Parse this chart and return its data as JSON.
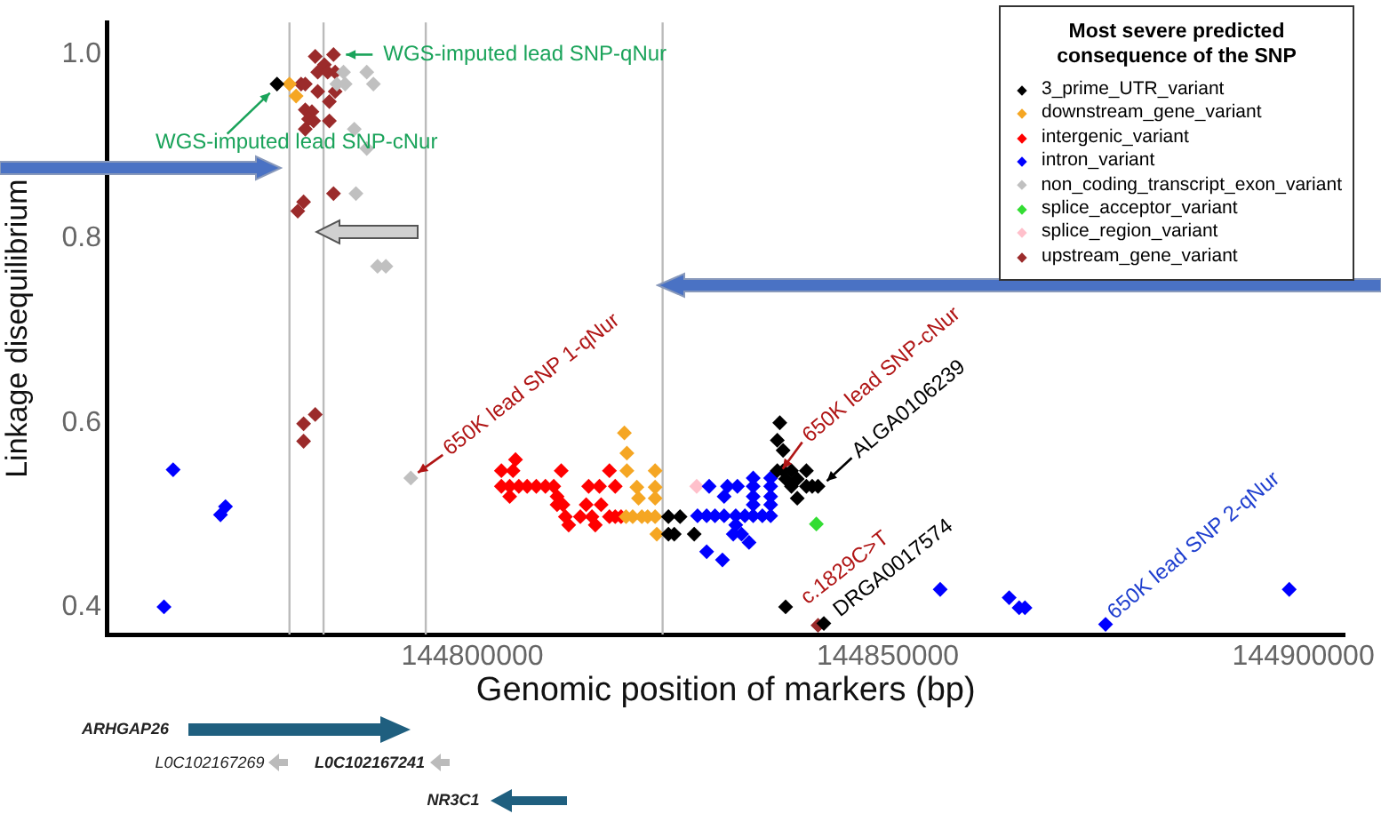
{
  "chart_data": {
    "type": "scatter",
    "xlabel": "Genomic position of markers (bp)",
    "ylabel": "Linkage disequilibrium",
    "legend_title": "Most severe predicted consequence of the SNP",
    "legend": "top right",
    "marker": "diamond",
    "xlim": [
      144756000,
      144905000
    ],
    "xticks": [
      144800000,
      144850000,
      144900000
    ],
    "ylim": [
      0.37,
      1.035
    ],
    "yticks": [
      0.4,
      0.6,
      0.8,
      {
        "value": 1,
        "label": "1.0"
      }
    ],
    "ref_lines": [
      {
        "axis": "x",
        "value": 144778000,
        "color": "#bbbbbb"
      },
      {
        "axis": "x",
        "value": 144782100,
        "color": "#bbbbbb"
      },
      {
        "axis": "x",
        "value": 144794400,
        "color": "#bbbbbb"
      },
      {
        "axis": "x",
        "value": 144822900,
        "color": "#bbbbbb"
      }
    ],
    "annotations": [
      {
        "text": "WGS-imputed lead SNP-qNur",
        "x": 144783300,
        "y": 1.0
      },
      {
        "text": "WGS-imputed lead SNP-cNur",
        "x": 144776500,
        "y": 0.968
      },
      {
        "text": "650K lead SNP 1-qNur",
        "x": 144792600,
        "y": 0.54
      },
      {
        "text": "650K lead SNP-cNur",
        "x": 144836700,
        "y": 0.548
      },
      {
        "text": "ALGA0106239",
        "x": 144841600,
        "y": 0.531
      },
      {
        "text": "c.1829C>T",
        "x": 144841600,
        "y": 0.38
      },
      {
        "text": "DRGA0017574",
        "x": 144842300,
        "y": 0.382
      },
      {
        "text": "650K lead SNP 2-qNur",
        "x": 144876200,
        "y": 0.381
      },
      "ARHGAP26",
      "L0C102167269",
      "L0C102167241",
      "NR3C1"
    ],
    "series": [
      {
        "name": "3_prime_UTR_variant",
        "color": "#000000",
        "x": [
          144776500,
          144823600,
          144825000,
          144823600,
          144824300,
          144826700,
          144837700,
          144842300,
          144837000,
          144836700,
          144837400,
          144836700,
          144837400,
          144838400,
          144840200,
          144837700,
          144839100,
          144838400,
          144840200,
          144840900,
          144841600,
          144839100
        ],
        "values": [
          0.968,
          0.498,
          0.498,
          0.479,
          0.479,
          0.479,
          0.4,
          0.382,
          0.6,
          0.581,
          0.57,
          0.548,
          0.548,
          0.548,
          0.548,
          0.539,
          0.539,
          0.531,
          0.531,
          0.531,
          0.531,
          0.518
        ]
      },
      {
        "name": "downstream_gene_variant",
        "color": "#f5a623",
        "x": [
          144778000,
          144778800,
          144818300,
          144818600,
          144818600,
          144822000,
          144819800,
          144822000,
          144820000,
          144822000,
          144818500,
          144819300,
          144820400,
          144821100,
          144822000,
          144822200
        ],
        "values": [
          0.968,
          0.955,
          0.589,
          0.567,
          0.548,
          0.548,
          0.53,
          0.53,
          0.518,
          0.518,
          0.498,
          0.498,
          0.498,
          0.498,
          0.498,
          0.479
        ]
      },
      {
        "name": "intergenic_variant",
        "color": "#ff0000",
        "x": [
          144805200,
          144803500,
          144804900,
          144810700,
          144816500,
          144803500,
          144804500,
          144805600,
          144806600,
          144807700,
          144808800,
          144809800,
          144814000,
          144815300,
          144817200,
          144804500,
          144810200,
          144810200,
          144810900,
          144813700,
          144815500,
          144811200,
          144813000,
          144814400,
          144816500,
          144817200,
          144817900,
          144811600,
          144814800
        ],
        "values": [
          0.56,
          0.548,
          0.548,
          0.548,
          0.548,
          0.531,
          0.531,
          0.531,
          0.531,
          0.531,
          0.531,
          0.531,
          0.531,
          0.531,
          0.531,
          0.52,
          0.52,
          0.511,
          0.511,
          0.511,
          0.511,
          0.498,
          0.498,
          0.498,
          0.498,
          0.498,
          0.498,
          0.489,
          0.489
        ]
      },
      {
        "name": "intron_variant",
        "color": "#0000ff",
        "x": [
          144764000,
          144770300,
          144769700,
          144762900,
          144828500,
          144830700,
          144831900,
          144833800,
          144835900,
          144833800,
          144835900,
          144830300,
          144833800,
          144835900,
          144833800,
          144835900,
          144827100,
          144828200,
          144829200,
          144830300,
          144831700,
          144832800,
          144833800,
          144834900,
          144835900,
          144831700,
          144831400,
          144832400,
          144833300,
          144828200,
          144830100,
          144856300,
          144864600,
          144865800,
          144866500,
          144898300,
          144876200
        ],
        "values": [
          0.549,
          0.509,
          0.5,
          0.4,
          0.531,
          0.531,
          0.531,
          0.531,
          0.531,
          0.54,
          0.54,
          0.52,
          0.52,
          0.52,
          0.511,
          0.511,
          0.499,
          0.499,
          0.499,
          0.499,
          0.499,
          0.499,
          0.499,
          0.499,
          0.499,
          0.489,
          0.479,
          0.479,
          0.47,
          0.46,
          0.451,
          0.419,
          0.41,
          0.399,
          0.399,
          0.419,
          0.381
        ]
      },
      {
        "name": "non_coding_transcript_exon_variant",
        "color": "#c0c0c0",
        "x": [
          144784500,
          144783700,
          144784700,
          144787300,
          144788100,
          144785800,
          144787300,
          144786000,
          144788600,
          144789600,
          144792600
        ],
        "values": [
          0.981,
          0.968,
          0.968,
          0.981,
          0.968,
          0.919,
          0.898,
          0.849,
          0.77,
          0.77,
          0.54
        ]
      },
      {
        "name": "splice_acceptor_variant",
        "color": "#33dd33",
        "x": [
          144841400
        ],
        "values": [
          0.49
        ]
      },
      {
        "name": "splice_region_variant",
        "color": "#ffc0cb",
        "x": [
          144827000
        ],
        "values": [
          0.531
        ]
      },
      {
        "name": "upstream_gene_variant",
        "color": "#9b2b2b",
        "x": [
          144781100,
          144783300,
          144782200,
          144781400,
          144782600,
          144783500,
          144779400,
          144779900,
          144781400,
          144783500,
          144782800,
          144779900,
          144780700,
          144780300,
          144780900,
          144782800,
          144779900,
          144783300,
          144779700,
          144779000,
          144779700,
          144781100,
          144779700,
          144841600
        ],
        "values": [
          0.998,
          1.0,
          0.989,
          0.981,
          0.981,
          0.981,
          0.968,
          0.968,
          0.96,
          0.96,
          0.949,
          0.94,
          0.938,
          0.93,
          0.928,
          0.928,
          0.919,
          0.849,
          0.84,
          0.83,
          0.599,
          0.609,
          0.58,
          0.38
        ]
      }
    ]
  }
}
